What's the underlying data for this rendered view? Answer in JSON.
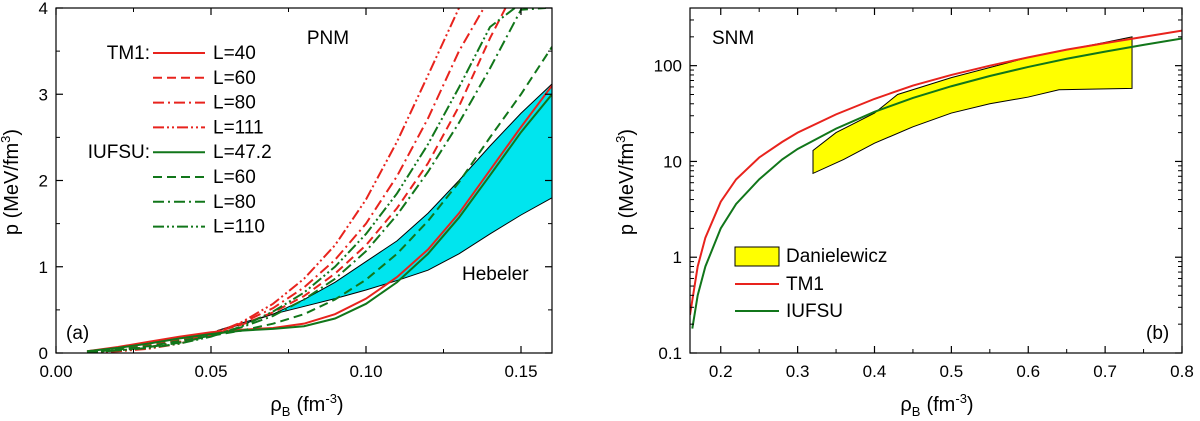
{
  "colors": {
    "tm1": "#e8231d",
    "iufsu": "#11761a",
    "hebeler_fill": "#00e5ee",
    "danielewicz_fill": "#ffff00",
    "axis": "#000000"
  },
  "chart_data": [
    {
      "id": "a",
      "type": "line",
      "panel_label": "(a)",
      "title": "PNM",
      "xlabel": "ρ",
      "xlabel_sub": "B",
      "xlabel_unit": "(fm",
      "xlabel_exp": "-3",
      "xlabel_close": ")",
      "ylabel": "p (MeV/fm",
      "ylabel_exp": "3",
      "ylabel_close": ")",
      "xlim": [
        0.0,
        0.16
      ],
      "ylim": [
        0,
        4
      ],
      "xticks": [
        0.0,
        0.05,
        0.1,
        0.15
      ],
      "xtick_labels": [
        "0.00",
        "0.05",
        "0.10",
        "0.15"
      ],
      "yticks": [
        0,
        1,
        2,
        3,
        4
      ],
      "ytick_labels": [
        "0",
        "1",
        "2",
        "3",
        "4"
      ],
      "band": {
        "name": "Hebeler",
        "upper": [
          [
            0.052,
            0.26
          ],
          [
            0.06,
            0.33
          ],
          [
            0.07,
            0.45
          ],
          [
            0.08,
            0.62
          ],
          [
            0.09,
            0.82
          ],
          [
            0.1,
            1.06
          ],
          [
            0.11,
            1.3
          ],
          [
            0.12,
            1.62
          ],
          [
            0.13,
            2.0
          ],
          [
            0.14,
            2.4
          ],
          [
            0.15,
            2.78
          ],
          [
            0.16,
            3.12
          ]
        ],
        "lower": [
          [
            0.052,
            0.26
          ],
          [
            0.06,
            0.35
          ],
          [
            0.07,
            0.45
          ],
          [
            0.08,
            0.54
          ],
          [
            0.09,
            0.63
          ],
          [
            0.1,
            0.73
          ],
          [
            0.11,
            0.84
          ],
          [
            0.12,
            0.96
          ],
          [
            0.13,
            1.15
          ],
          [
            0.14,
            1.38
          ],
          [
            0.15,
            1.6
          ],
          [
            0.16,
            1.8
          ]
        ]
      },
      "legend_groups": [
        {
          "group": "TM1:",
          "series_index": 0
        },
        {
          "group": "IUFSU:",
          "series_index": 4
        }
      ],
      "series": [
        {
          "name": "L=40",
          "model": "TM1",
          "style": "solid",
          "x": [
            0.01,
            0.02,
            0.03,
            0.04,
            0.05,
            0.06,
            0.07,
            0.08,
            0.09,
            0.1,
            0.11,
            0.12,
            0.13,
            0.14,
            0.15,
            0.16
          ],
          "y": [
            0.02,
            0.07,
            0.13,
            0.19,
            0.24,
            0.27,
            0.29,
            0.34,
            0.45,
            0.63,
            0.88,
            1.2,
            1.62,
            2.12,
            2.62,
            3.1
          ]
        },
        {
          "name": "L=60",
          "model": "TM1",
          "style": "dash",
          "x": [
            0.01,
            0.02,
            0.03,
            0.04,
            0.05,
            0.06,
            0.07,
            0.08,
            0.09,
            0.1,
            0.11,
            0.12,
            0.13,
            0.14,
            0.145
          ],
          "y": [
            0.01,
            0.04,
            0.09,
            0.15,
            0.23,
            0.33,
            0.47,
            0.66,
            0.92,
            1.25,
            1.68,
            2.2,
            2.86,
            3.65,
            4.0
          ]
        },
        {
          "name": "L=80",
          "model": "TM1",
          "style": "dashdot",
          "x": [
            0.01,
            0.02,
            0.03,
            0.04,
            0.05,
            0.06,
            0.07,
            0.08,
            0.09,
            0.1,
            0.11,
            0.12,
            0.13,
            0.138
          ],
          "y": [
            0.01,
            0.03,
            0.07,
            0.13,
            0.22,
            0.35,
            0.52,
            0.76,
            1.08,
            1.5,
            2.05,
            2.72,
            3.5,
            4.0
          ]
        },
        {
          "name": "L=111",
          "model": "TM1",
          "style": "dashdotdot",
          "x": [
            0.01,
            0.02,
            0.03,
            0.04,
            0.05,
            0.06,
            0.07,
            0.08,
            0.09,
            0.1,
            0.11,
            0.12,
            0.13
          ],
          "y": [
            0.0,
            0.02,
            0.05,
            0.11,
            0.21,
            0.36,
            0.57,
            0.86,
            1.25,
            1.78,
            2.45,
            3.22,
            4.0
          ]
        },
        {
          "name": "L=47.2",
          "model": "IUFSU",
          "style": "solid",
          "x": [
            0.01,
            0.02,
            0.03,
            0.04,
            0.05,
            0.06,
            0.07,
            0.08,
            0.09,
            0.1,
            0.11,
            0.12,
            0.13,
            0.14,
            0.15,
            0.16
          ],
          "y": [
            0.02,
            0.06,
            0.11,
            0.17,
            0.22,
            0.26,
            0.28,
            0.31,
            0.4,
            0.57,
            0.82,
            1.15,
            1.57,
            2.06,
            2.56,
            3.0
          ]
        },
        {
          "name": "L=60",
          "model": "IUFSU",
          "style": "dash",
          "x": [
            0.01,
            0.02,
            0.03,
            0.04,
            0.05,
            0.06,
            0.07,
            0.08,
            0.09,
            0.1,
            0.11,
            0.12,
            0.13,
            0.14,
            0.15,
            0.16
          ],
          "y": [
            0.01,
            0.04,
            0.08,
            0.14,
            0.2,
            0.26,
            0.34,
            0.45,
            0.62,
            0.85,
            1.15,
            1.53,
            1.98,
            2.5,
            3.0,
            3.55
          ]
        },
        {
          "name": "L=80",
          "model": "IUFSU",
          "style": "dashdot",
          "x": [
            0.01,
            0.02,
            0.03,
            0.04,
            0.05,
            0.06,
            0.07,
            0.08,
            0.09,
            0.1,
            0.11,
            0.12,
            0.13,
            0.14,
            0.15,
            0.158
          ],
          "y": [
            0.01,
            0.03,
            0.07,
            0.12,
            0.2,
            0.3,
            0.43,
            0.62,
            0.86,
            1.18,
            1.6,
            2.1,
            2.67,
            3.3,
            3.98,
            4.0
          ]
        },
        {
          "name": "L=110",
          "model": "IUFSU",
          "style": "dashdotdot",
          "x": [
            0.01,
            0.02,
            0.03,
            0.04,
            0.05,
            0.06,
            0.07,
            0.08,
            0.09,
            0.1,
            0.11,
            0.12,
            0.13,
            0.14,
            0.148
          ],
          "y": [
            0.01,
            0.03,
            0.06,
            0.11,
            0.19,
            0.31,
            0.48,
            0.7,
            1.0,
            1.38,
            1.85,
            2.42,
            3.08,
            3.78,
            4.0
          ]
        }
      ],
      "annotations": [
        {
          "text": "Hebeler",
          "x": 0.141,
          "y": 0.9
        }
      ]
    },
    {
      "id": "b",
      "type": "line",
      "panel_label": "(b)",
      "title": "SNM",
      "xlabel": "ρ",
      "xlabel_sub": "B",
      "xlabel_unit": "(fm",
      "xlabel_exp": "-3",
      "xlabel_close": ")",
      "ylabel": "p (MeV/fm",
      "ylabel_exp": "3",
      "ylabel_close": ")",
      "xlim": [
        0.16,
        0.8
      ],
      "ylim": [
        0.1,
        400
      ],
      "yscale": "log",
      "xticks": [
        0.2,
        0.3,
        0.4,
        0.5,
        0.6,
        0.7,
        0.8
      ],
      "xtick_labels": [
        "0.2",
        "0.3",
        "0.4",
        "0.5",
        "0.6",
        "0.7",
        "0.8"
      ],
      "yticks": [
        0.1,
        1,
        10,
        100
      ],
      "ytick_labels": [
        "0.1",
        "1",
        "10",
        "100"
      ],
      "band": {
        "name": "Danielewicz",
        "polygon": [
          [
            0.32,
            7.5
          ],
          [
            0.32,
            13.0
          ],
          [
            0.35,
            20.0
          ],
          [
            0.4,
            32.0
          ],
          [
            0.43,
            50.0
          ],
          [
            0.5,
            75.0
          ],
          [
            0.6,
            122.0
          ],
          [
            0.7,
            175.0
          ],
          [
            0.735,
            200.0
          ],
          [
            0.735,
            58.0
          ],
          [
            0.64,
            56.0
          ],
          [
            0.6,
            47.0
          ],
          [
            0.55,
            40.0
          ],
          [
            0.5,
            32.0
          ],
          [
            0.45,
            23.0
          ],
          [
            0.4,
            15.5
          ],
          [
            0.36,
            10.5
          ],
          [
            0.32,
            7.5
          ]
        ]
      },
      "series": [
        {
          "name": "TM1",
          "model": "TM1",
          "style": "solid",
          "x": [
            0.16,
            0.17,
            0.18,
            0.2,
            0.22,
            0.25,
            0.28,
            0.3,
            0.35,
            0.4,
            0.45,
            0.5,
            0.55,
            0.6,
            0.65,
            0.7,
            0.75,
            0.8
          ],
          "y": [
            0.25,
            0.8,
            1.6,
            3.8,
            6.5,
            11.0,
            16.0,
            20.0,
            31.0,
            45.0,
            62.0,
            80.0,
            100.0,
            122.0,
            147.0,
            172.0,
            200.0,
            232.0
          ]
        },
        {
          "name": "IUFSU",
          "model": "IUFSU",
          "style": "solid",
          "x": [
            0.163,
            0.17,
            0.18,
            0.2,
            0.22,
            0.25,
            0.28,
            0.3,
            0.35,
            0.4,
            0.45,
            0.5,
            0.55,
            0.6,
            0.65,
            0.7,
            0.75,
            0.8
          ],
          "y": [
            0.18,
            0.4,
            0.8,
            2.0,
            3.6,
            6.5,
            10.5,
            13.5,
            22.0,
            33.0,
            46.0,
            61.0,
            78.0,
            97.0,
            118.0,
            140.0,
            165.0,
            192.0
          ]
        }
      ],
      "legend": [
        {
          "label": "Danielewicz",
          "kind": "fill"
        },
        {
          "label": "TM1",
          "kind": "line",
          "model": "TM1"
        },
        {
          "label": "IUFSU",
          "kind": "line",
          "model": "IUFSU"
        }
      ]
    }
  ]
}
